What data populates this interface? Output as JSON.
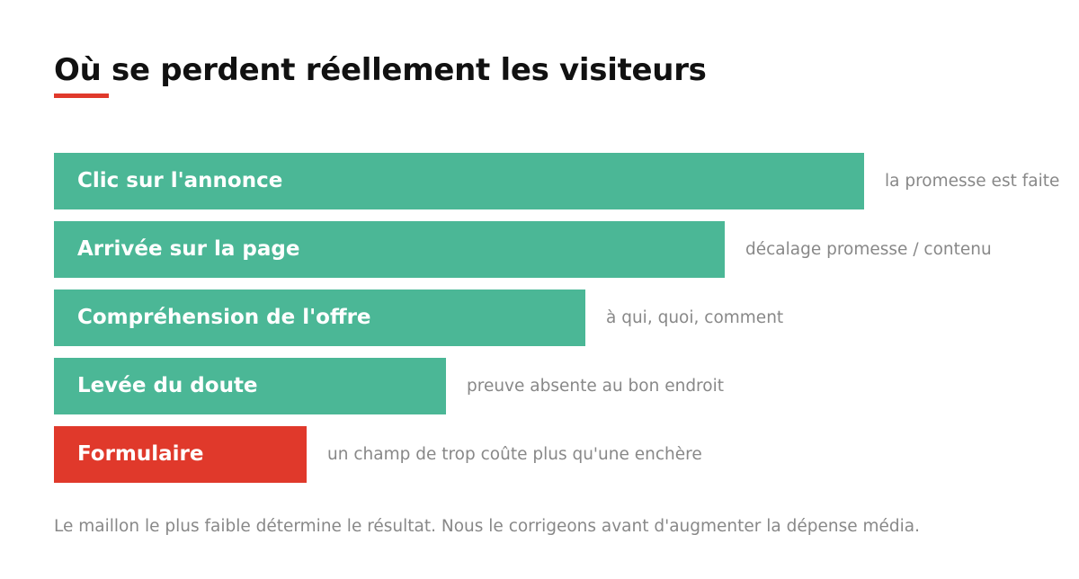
{
  "header": {
    "title": "Où se perdent réellement les visiteurs"
  },
  "colors": {
    "accent": "#e0392b",
    "stage": "#4bb796",
    "note_text": "#888888"
  },
  "stages": [
    {
      "label": "Clic sur l'annonce",
      "note": "la promesse est faite",
      "relative_width": 1.0,
      "color": "#4bb796"
    },
    {
      "label": "Arrivée sur la page",
      "note": "décalage promesse / contenu",
      "relative_width": 0.828,
      "color": "#4bb796"
    },
    {
      "label": "Compréhension de l'offre",
      "note": "à qui, quoi, comment",
      "relative_width": 0.656,
      "color": "#4bb796"
    },
    {
      "label": "Levée du doute",
      "note": "preuve absente au bon endroit",
      "relative_width": 0.484,
      "color": "#4bb796"
    },
    {
      "label": "Formulaire",
      "note": "un champ de trop coûte plus qu'une enchère",
      "relative_width": 0.312,
      "color": "#e0392b"
    }
  ],
  "footer": {
    "text": "Le maillon le plus faible détermine le résultat. Nous le corrigeons avant d'augmenter la dépense média."
  }
}
